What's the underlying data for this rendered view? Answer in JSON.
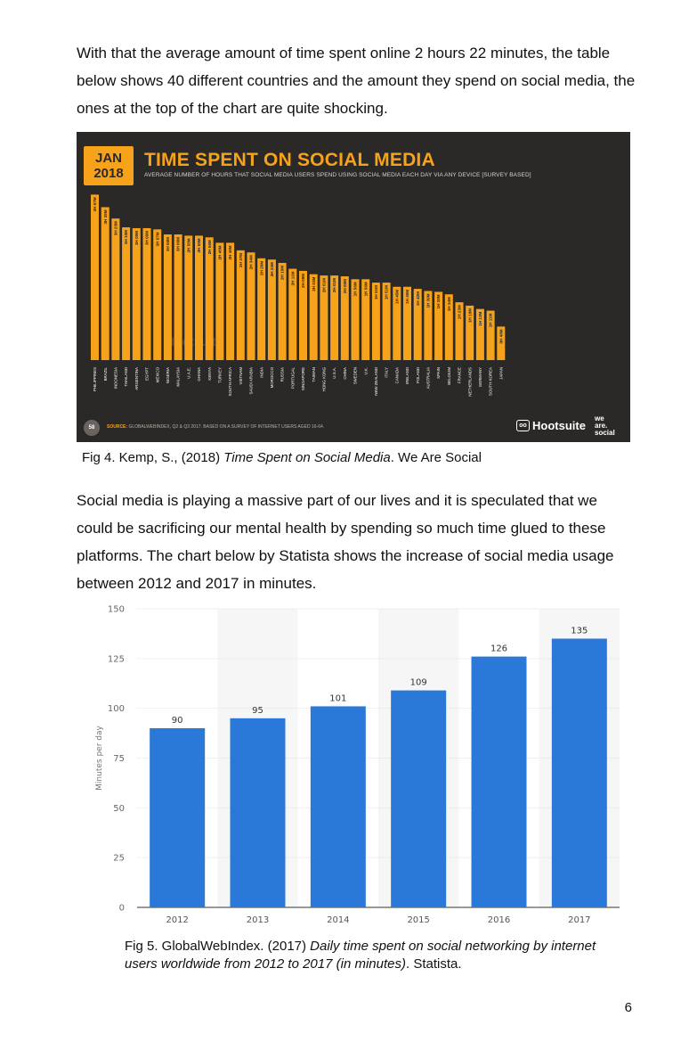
{
  "paragraphs": {
    "p1": "With that the average amount of time spent online 2 hours 22 minutes, the table below shows 40 different countries and the amount they spend on social media, the ones at the top of the chart are quite shocking.",
    "p2": "Social media is playing a massive part of our lives and it is speculated that we could be sacrificing our mental health by spending so much time glued to these platforms. The chart below by Statista shows the increase of social media usage between 2012 and 2017 in minutes."
  },
  "captions": {
    "fig4": {
      "prefix": "Fig 4. Kemp, S., (2018) ",
      "title": "Time Spent on Social Media",
      "suffix": ". We Are Social"
    },
    "fig5": {
      "prefix": "Fig 5. GlobalWebIndex. (2017) ",
      "title": "Daily time spent on social networking by internet users worldwide from 2012 to 2017 (in minutes)",
      "suffix": ". Statista."
    }
  },
  "page_number": "6",
  "infographic": {
    "badge_month": "JAN",
    "badge_year": "2018",
    "title": "TIME SPENT ON SOCIAL MEDIA",
    "subtitle": "AVERAGE NUMBER OF HOURS THAT SOCIAL MEDIA USERS SPEND USING SOCIAL MEDIA EACH DAY VIA ANY DEVICE [SURVEY BASED]",
    "page_badge": "58",
    "source_label": "SOURCE:",
    "source_text": "GLOBALWEBINDEX, Q2 & Q3 2017. BASED ON A SURVEY OF INTERNET USERS AGED 16-64.",
    "hootsuite": "Hootsuite",
    "we_are_social": [
      "we",
      "are.",
      "social"
    ],
    "watermark": "Hootsuite",
    "colors": {
      "bar": "#f7a21b",
      "background": "#2b2828"
    }
  },
  "chart_data": [
    {
      "type": "bar",
      "title": "TIME SPENT ON SOCIAL MEDIA",
      "categories": [
        "PHILIPPINES",
        "BRAZIL",
        "INDONESIA",
        "THAILAND",
        "ARGENTINA",
        "EGYPT",
        "MEXICO",
        "NIGERIA",
        "MALAYSIA",
        "U.A.E.",
        "GHANA",
        "KENYA",
        "TURKEY",
        "SOUTH AFRICA",
        "VIETNAM",
        "SAUDI ARABIA",
        "INDIA",
        "MOROCCO",
        "RUSSIA",
        "PORTUGAL",
        "SINGAPORE",
        "TAIWAN",
        "HONG KONG",
        "U.S.A.",
        "CHINA",
        "SWEDEN",
        "U.K.",
        "NEW ZEALAND",
        "ITALY",
        "CANADA",
        "IRELAND",
        "POLAND",
        "AUSTRALIA",
        "SPAIN",
        "BELGIUM",
        "FRANCE",
        "NETHERLANDS",
        "GERMANY",
        "SOUTH KOREA",
        "JAPAN"
      ],
      "data_labels": [
        "3H 57M",
        "3H 39M",
        "3H 23M",
        "3H 10M",
        "3H 09M",
        "3H 09M",
        "3H 07M",
        "3H 00M",
        "3H 00M",
        "2H 58M",
        "2H 58M",
        "2H 56M",
        "2H 48M",
        "2H 48M",
        "2H 37M",
        "2H 34M",
        "2H 26M",
        "2H 24M",
        "2H 19M",
        "2H 11M",
        "2H 08M",
        "2H 03M",
        "2H 01M",
        "2H 01M",
        "2H 00M",
        "1H 56M",
        "1H 56M",
        "1H 51M",
        "1H 51M",
        "1H 45M",
        "1H 45M",
        "1H 42M",
        "1H 39M",
        "1H 38M",
        "1H 34M",
        "1H 23M",
        "1H 18M",
        "1H 13M",
        "1H 11M",
        "0H 48M"
      ],
      "values": [
        3.95,
        3.65,
        3.38,
        3.17,
        3.15,
        3.15,
        3.12,
        3.0,
        3.0,
        2.97,
        2.97,
        2.93,
        2.8,
        2.8,
        2.62,
        2.57,
        2.43,
        2.4,
        2.32,
        2.18,
        2.13,
        2.05,
        2.02,
        2.02,
        2.0,
        1.93,
        1.93,
        1.85,
        1.85,
        1.75,
        1.75,
        1.7,
        1.65,
        1.63,
        1.57,
        1.38,
        1.3,
        1.22,
        1.18,
        0.8
      ],
      "ylim": [
        0,
        4
      ]
    },
    {
      "type": "bar",
      "categories": [
        "2012",
        "2013",
        "2014",
        "2015",
        "2016",
        "2017"
      ],
      "values": [
        90,
        95,
        101,
        109,
        126,
        135
      ],
      "data_labels": [
        "90",
        "95",
        "101",
        "109",
        "126",
        "135"
      ],
      "ylabel": "Minutes per day",
      "yticks": [
        0,
        25,
        50,
        75,
        100,
        125,
        150
      ],
      "ylim": [
        0,
        150
      ],
      "grid": true,
      "bar_color": "#2a79d8"
    }
  ]
}
